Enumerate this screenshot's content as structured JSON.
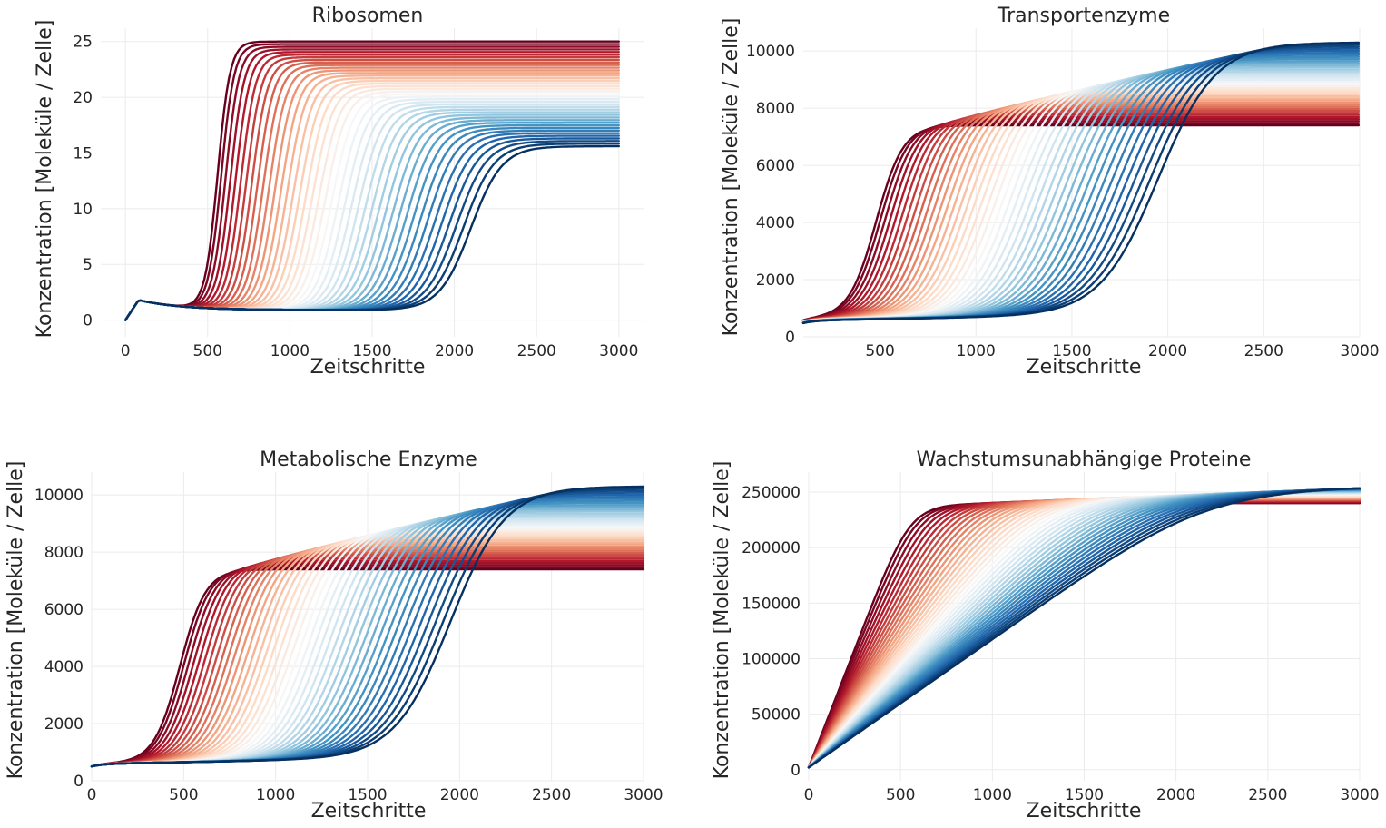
{
  "chart_data": [
    {
      "type": "line",
      "title": "Ribosomen",
      "xlabel": "Zeitschritte",
      "ylabel": "Konzentration [Moleküle / Zelle]",
      "xlim": [
        -150,
        3150
      ],
      "ylim": [
        -1.5,
        26.2
      ],
      "xticks": [
        0,
        500,
        1000,
        1500,
        2000,
        2500,
        3000
      ],
      "xtick_labels": [
        "0",
        "500",
        "1000",
        "1500",
        "2000",
        "2500",
        "3000"
      ],
      "yticks": [
        0,
        5,
        10,
        15,
        20,
        25
      ],
      "ytick_labels": [
        "0",
        "5",
        "10",
        "15",
        "20",
        "25"
      ],
      "grid": true,
      "legend": "none",
      "colormap": "RdBu (red to blue)",
      "series_count": 41,
      "series_range": {
        "first": {
          "color": "#67001f",
          "start": 0,
          "plateau": 25.0,
          "rise_midpoint": 560
        },
        "last": {
          "color": "#053061",
          "start": 0,
          "plateau": 15.6,
          "rise_midpoint": 2100
        }
      },
      "model": {
        "kind": "ribosome",
        "x_start": 0,
        "x_end": 3000,
        "transient_peak": 1.8,
        "low_level": 0.9
      }
    },
    {
      "type": "line",
      "title": "Transportenzyme",
      "xlabel": "Zeitschritte",
      "ylabel": "Konzentration [Moleküle / Zelle]",
      "xlim": [
        100,
        3000
      ],
      "ylim": [
        0,
        10800
      ],
      "xticks": [
        500,
        1000,
        1500,
        2000,
        2500,
        3000
      ],
      "xtick_labels": [
        "500",
        "1000",
        "1500",
        "2000",
        "2500",
        "3000"
      ],
      "yticks": [
        0,
        2000,
        4000,
        6000,
        8000,
        10000
      ],
      "ytick_labels": [
        "0",
        "2000",
        "4000",
        "6000",
        "8000",
        "10000"
      ],
      "grid": true,
      "legend": "none",
      "colormap": "RdBu (red to blue)",
      "series_count": 41,
      "series_range": {
        "first": {
          "color": "#67001f",
          "start": 550,
          "plateau": 7400,
          "rise_midpoint": 480
        },
        "last": {
          "color": "#053061",
          "start": 480,
          "plateau": 10300,
          "rise_midpoint": 1950
        }
      },
      "model": {
        "kind": "enzyme",
        "x_start": 100,
        "x_end": 3000
      }
    },
    {
      "type": "line",
      "title": "Metabolische Enzyme",
      "xlabel": "Zeitschritte",
      "ylabel": "Konzentration [Moleküle / Zelle]",
      "xlim": [
        0,
        3000
      ],
      "ylim": [
        0,
        10800
      ],
      "xticks": [
        0,
        500,
        1000,
        1500,
        2000,
        2500,
        3000
      ],
      "xtick_labels": [
        "0",
        "500",
        "1000",
        "1500",
        "2000",
        "2500",
        "3000"
      ],
      "yticks": [
        0,
        2000,
        4000,
        6000,
        8000,
        10000
      ],
      "ytick_labels": [
        "0",
        "2000",
        "4000",
        "6000",
        "8000",
        "10000"
      ],
      "grid": true,
      "legend": "none",
      "colormap": "RdBu (red to blue)",
      "series_count": 41,
      "series_range": {
        "first": {
          "color": "#67001f",
          "start": 500,
          "plateau": 7400,
          "rise_midpoint": 480
        },
        "last": {
          "color": "#053061",
          "start": 500,
          "plateau": 10300,
          "rise_midpoint": 1950
        }
      },
      "model": {
        "kind": "enzyme",
        "x_start": 0,
        "x_end": 3000
      }
    },
    {
      "type": "line",
      "title": "Wachstumsunabhängige Proteine",
      "xlabel": "Zeitschritte",
      "ylabel": "Konzentration [Moleküle / Zelle]",
      "xlim": [
        0,
        3000
      ],
      "ylim": [
        -10000,
        268000
      ],
      "xticks": [
        0,
        500,
        1000,
        1500,
        2000,
        2500,
        3000
      ],
      "xtick_labels": [
        "0",
        "500",
        "1000",
        "1500",
        "2000",
        "2500",
        "3000"
      ],
      "yticks": [
        0,
        50000,
        100000,
        150000,
        200000,
        250000
      ],
      "ytick_labels": [
        "0",
        "50000",
        "100000",
        "150000",
        "200000",
        "250000"
      ],
      "grid": true,
      "legend": "none",
      "colormap": "RdBu (red to blue)",
      "series_count": 41,
      "series_range": {
        "first": {
          "color": "#67001f",
          "start": 2000,
          "plateau": 240000,
          "saturation_x": 560
        },
        "last": {
          "color": "#053061",
          "start": 2000,
          "plateau": 256000,
          "saturation_x": 2200
        }
      },
      "model": {
        "kind": "linear-saturating",
        "x_start": 0,
        "x_end": 3000
      }
    }
  ]
}
